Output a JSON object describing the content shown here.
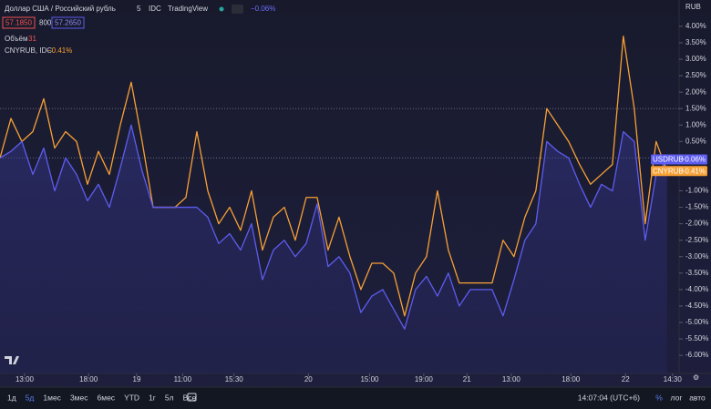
{
  "chart_data": {
    "type": "line",
    "legend": {
      "symbol": "Доллар США / Российский рубль",
      "interval": "5",
      "source": "IDC",
      "provider": "TradingView",
      "change": "−0.06%",
      "bid": "57.1850",
      "spread": "800",
      "ask": "57.2650",
      "volume_label": "Объём",
      "volume": "31",
      "compare_label": "CNYRUB, IDC",
      "compare_change": "−0.41%"
    },
    "axis_unit": "RUB",
    "series": [
      {
        "name": "USDRUB",
        "color": "#5d5cf0",
        "last_label": "−0.06%",
        "values": [
          0.0,
          0.2,
          0.5,
          -0.5,
          0.3,
          -1.0,
          0.0,
          -0.5,
          -1.3,
          -0.8,
          -1.5,
          -0.3,
          1.0,
          -0.4,
          -1.5,
          -1.5,
          -1.5,
          -1.5,
          -1.5,
          -1.8,
          -2.6,
          -2.3,
          -2.8,
          -2.0,
          -3.7,
          -2.8,
          -2.5,
          -3.0,
          -2.6,
          -1.4,
          -3.3,
          -3.0,
          -3.5,
          -4.7,
          -4.2,
          -4.0,
          -4.6,
          -5.2,
          -4.0,
          -3.6,
          -4.2,
          -3.5,
          -4.5,
          -4.0,
          -4.0,
          -4.0,
          -4.8,
          -3.7,
          -2.5,
          -2.0,
          0.5,
          0.2,
          0.0,
          -0.8,
          -1.5,
          -0.8,
          -1.0,
          0.8,
          0.5,
          -2.5,
          -0.5,
          -0.06
        ]
      },
      {
        "name": "CNYRUB",
        "color": "#f7a035",
        "last_label": "−0.41%",
        "values": [
          0.0,
          1.2,
          0.5,
          0.8,
          1.8,
          0.3,
          0.8,
          0.5,
          -0.8,
          0.2,
          -0.5,
          1.0,
          2.3,
          0.5,
          -1.5,
          -1.5,
          -1.5,
          -1.2,
          0.8,
          -1.0,
          -2.0,
          -1.5,
          -2.2,
          -1.0,
          -2.8,
          -1.8,
          -1.5,
          -2.5,
          -1.2,
          -1.2,
          -2.8,
          -1.8,
          -3.0,
          -4.0,
          -3.2,
          -3.2,
          -3.5,
          -4.8,
          -3.5,
          -3.0,
          -1.0,
          -2.8,
          -3.8,
          -3.8,
          -3.8,
          -3.8,
          -2.5,
          -3.0,
          -1.8,
          -1.0,
          1.5,
          1.0,
          0.5,
          -0.2,
          -0.8,
          -0.5,
          -0.2,
          3.7,
          1.5,
          -2.0,
          0.5,
          -0.41
        ]
      }
    ],
    "xlim": [
      0,
      62.1
    ],
    "xticks": [
      {
        "value": 2.25,
        "label": "13:00"
      },
      {
        "value": 8.1,
        "label": "18:00"
      },
      {
        "value": 12.5,
        "label": "19"
      },
      {
        "value": 16.7,
        "label": "11:00"
      },
      {
        "value": 21.4,
        "label": "15:30"
      },
      {
        "value": 28.2,
        "label": "20"
      },
      {
        "value": 33.8,
        "label": "15:00"
      },
      {
        "value": 38.75,
        "label": "19:00"
      },
      {
        "value": 42.7,
        "label": "21"
      },
      {
        "value": 46.75,
        "label": "13:00"
      },
      {
        "value": 52.2,
        "label": "18:00"
      },
      {
        "value": 57.2,
        "label": "22"
      },
      {
        "value": 61.5,
        "label": "14:30"
      }
    ],
    "ylim": [
      -6.55,
      4.8
    ],
    "yticks": [
      {
        "value": 4.0,
        "label": "4.00%"
      },
      {
        "value": 3.5,
        "label": "3.50%"
      },
      {
        "value": 3.0,
        "label": "3.00%"
      },
      {
        "value": 2.5,
        "label": "2.50%"
      },
      {
        "value": 2.0,
        "label": "2.00%"
      },
      {
        "value": 1.5,
        "label": "1.50%"
      },
      {
        "value": 1.0,
        "label": "1.00%"
      },
      {
        "value": 0.5,
        "label": "0.50%"
      },
      {
        "value": -1.0,
        "label": "-1.00%"
      },
      {
        "value": -1.5,
        "label": "-1.50%"
      },
      {
        "value": -2.0,
        "label": "-2.00%"
      },
      {
        "value": -2.5,
        "label": "-2.50%"
      },
      {
        "value": -3.0,
        "label": "-3.00%"
      },
      {
        "value": -3.5,
        "label": "-3.50%"
      },
      {
        "value": -4.0,
        "label": "-4.00%"
      },
      {
        "value": -4.5,
        "label": "-4.50%"
      },
      {
        "value": -5.0,
        "label": "-5.00%"
      },
      {
        "value": -5.5,
        "label": "-5.50%"
      },
      {
        "value": -6.0,
        "label": "-6.00%"
      }
    ],
    "reference_lines": [
      0,
      1.5
    ],
    "grid": false,
    "toolbar": {
      "ranges": [
        "1д",
        "5д",
        "1мес",
        "3мес",
        "6мес",
        "YTD",
        "1г",
        "5л",
        "Все"
      ],
      "active_range": "5д",
      "clock": "14:07:04 (UTC+6)",
      "options": [
        "%",
        "лог",
        "авто"
      ]
    }
  }
}
